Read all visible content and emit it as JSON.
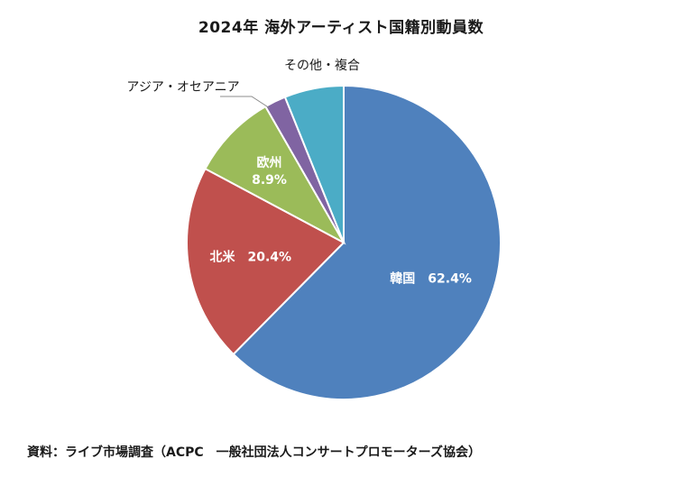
{
  "chart_data": {
    "type": "pie",
    "title": "2024年 海外アーティスト国籍別動員数",
    "categories": [
      "韓国",
      "北米",
      "欧州",
      "アジア・オセアニア",
      "その他・複合"
    ],
    "values": [
      62.4,
      20.4,
      8.9,
      2.2,
      6.1
    ],
    "value_labels": [
      "62.4%",
      "20.4%",
      "8.9%",
      "",
      ""
    ],
    "colors": [
      "#4f81bd",
      "#c0504d",
      "#9bbb59",
      "#8064a2",
      "#4bacc6"
    ],
    "start_angle": "12 o'clock",
    "direction": "clockwise",
    "legend": "none"
  },
  "source": "資料：ライブ市場調査（ACPC　一般社団法人コンサートプロモーターズ協会）"
}
